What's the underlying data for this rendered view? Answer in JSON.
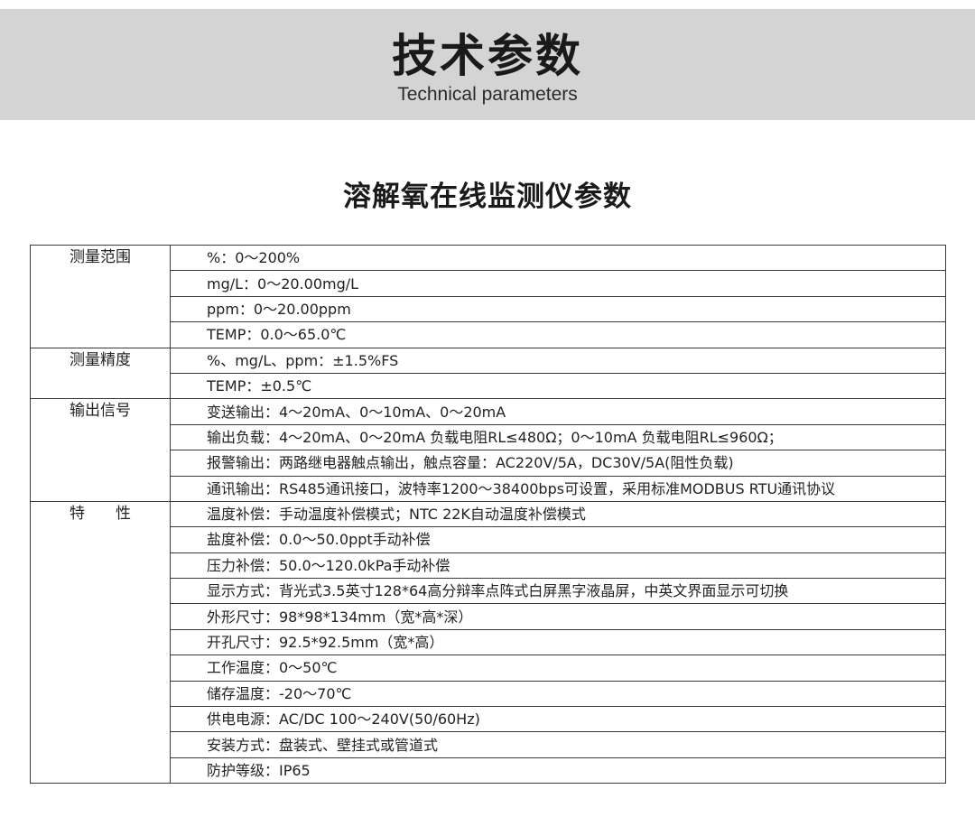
{
  "header": {
    "title": "技术参数",
    "subtitle": "Technical parameters"
  },
  "section_title": "溶解氧在线监测仪参数",
  "groups": [
    {
      "label": "测量范围",
      "items": [
        "%：0～200%",
        "mg/L：0～20.00mg/L",
        "ppm：0～20.00ppm",
        "TEMP：0.0～65.0℃"
      ]
    },
    {
      "label": "测量精度",
      "items": [
        "%、mg/L、ppm：±1.5%FS",
        "TEMP：±0.5℃"
      ]
    },
    {
      "label": "输出信号",
      "items": [
        "变送输出：4～20mA、0～10mA、0～20mA",
        "输出负载：4～20mA、0～20mA 负载电阻RL≤480Ω；0～10mA 负载电阻RL≤960Ω；",
        "报警输出：两路继电器触点输出，触点容量：AC220V/5A，DC30V/5A(阻性负载)",
        "通讯输出：RS485通讯接口，波特率1200～38400bps可设置，采用标准MODBUS RTU通讯协议"
      ]
    },
    {
      "label": "特　　性",
      "items": [
        "温度补偿：手动温度补偿模式；NTC 22K自动温度补偿模式",
        "盐度补偿：0.0～50.0ppt手动补偿",
        "压力补偿：50.0～120.0kPa手动补偿",
        "显示方式：背光式3.5英寸128*64高分辩率点阵式白屏黑字液晶屏，中英文界面显示可切换",
        "外形尺寸：98*98*134mm（宽*高*深）",
        "开孔尺寸：92.5*92.5mm（宽*高）",
        "工作温度：0～50℃",
        "储存温度：-20～70℃",
        "供电电源：AC/DC 100～240V(50/60Hz)",
        "安装方式：盘装式、壁挂式或管道式",
        "防护等级：IP65"
      ]
    }
  ]
}
